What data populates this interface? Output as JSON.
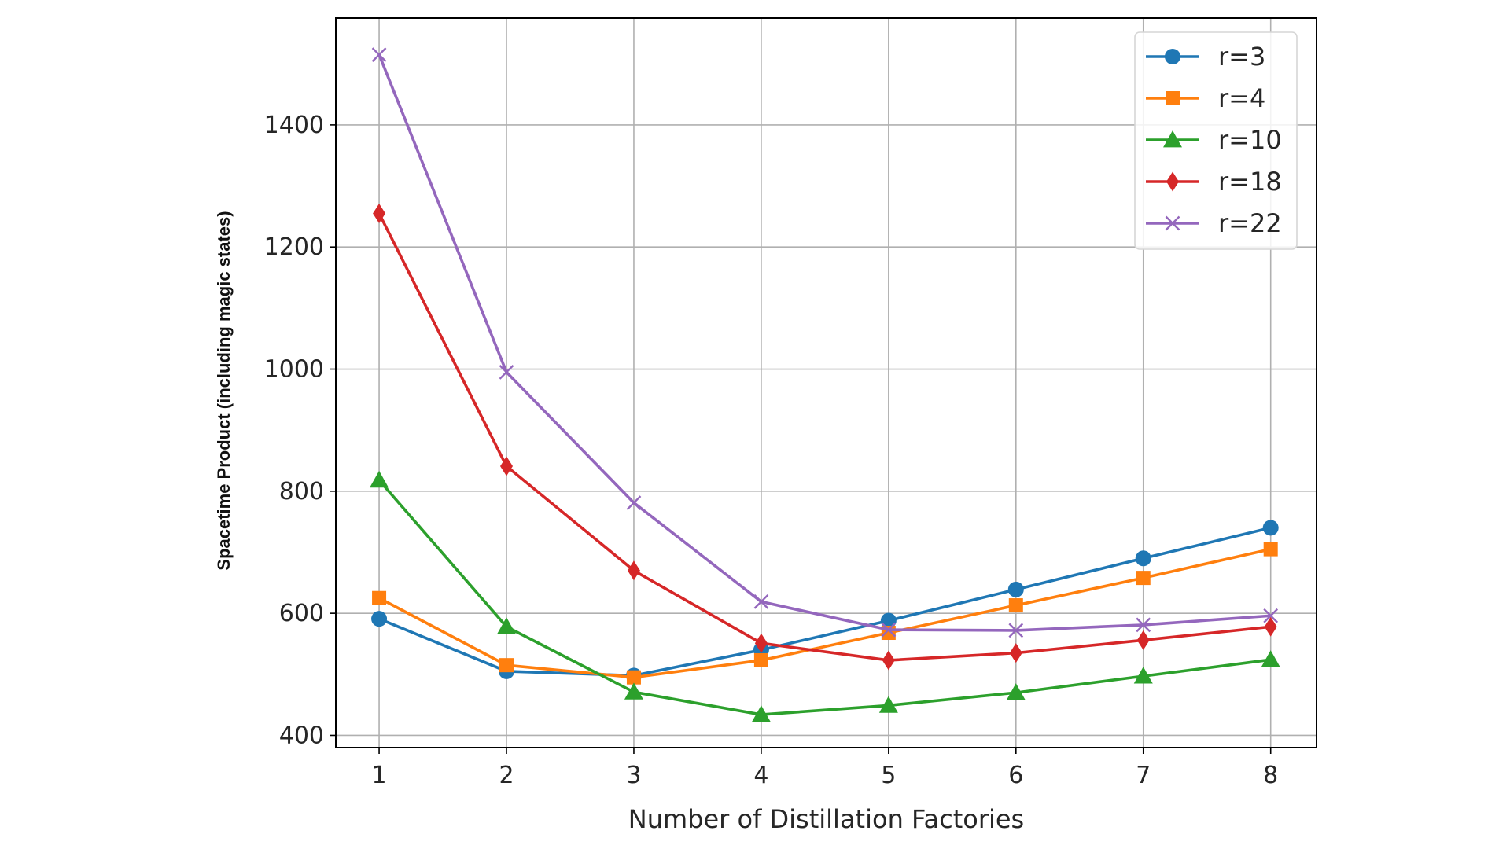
{
  "chart_data": {
    "type": "line",
    "title": "",
    "xlabel": "Number of Distillation Factories",
    "ylabel": "Spacetime Product (including magic states)",
    "x": [
      1,
      2,
      3,
      4,
      5,
      6,
      7,
      8
    ],
    "xticks": [
      "1",
      "2",
      "3",
      "4",
      "5",
      "6",
      "7",
      "8"
    ],
    "xlim": [
      0.66,
      8.36
    ],
    "ylim": [
      380,
      1575
    ],
    "yticks": [
      400,
      600,
      800,
      1000,
      1200,
      1400
    ],
    "ytick_labels": [
      "400",
      "600",
      "800",
      "1000",
      "1200",
      "1400"
    ],
    "grid": true,
    "legend_position": "top-right",
    "series": [
      {
        "name": "r=3",
        "color": "#1f77b4",
        "marker": "circle",
        "values": [
          591,
          505,
          498,
          540,
          588,
          639,
          690,
          740
        ]
      },
      {
        "name": "r=4",
        "color": "#ff7f0e",
        "marker": "square",
        "values": [
          625,
          515,
          495,
          523,
          568,
          613,
          658,
          705
        ]
      },
      {
        "name": "r=10",
        "color": "#2ca02c",
        "marker": "triangle",
        "values": [
          818,
          578,
          471,
          434,
          449,
          470,
          497,
          524
        ]
      },
      {
        "name": "r=18",
        "color": "#d62728",
        "marker": "diamond",
        "values": [
          1255,
          841,
          670,
          551,
          523,
          535,
          556,
          578
        ]
      },
      {
        "name": "r=22",
        "color": "#9467bd",
        "marker": "x",
        "values": [
          1515,
          995,
          781,
          619,
          573,
          572,
          581,
          596
        ]
      }
    ]
  }
}
